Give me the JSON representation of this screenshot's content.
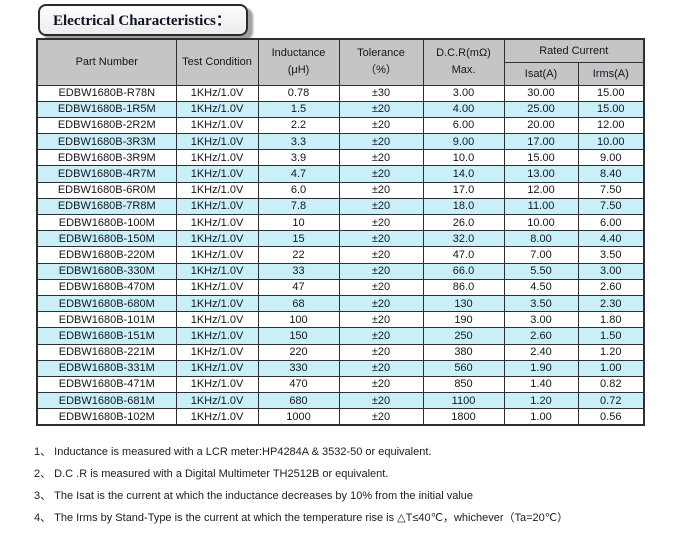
{
  "title": "Electrical Characteristics：",
  "colors": {
    "header_bg": "#c5c5c5",
    "alt_row_bg": "#c9f0f8",
    "border": "#2f2f2f",
    "text": "#15151f"
  },
  "table": {
    "headers": {
      "part_number": "Part Number",
      "test_condition": "Test Condition",
      "inductance": [
        "Inductance",
        "(μH)"
      ],
      "tolerance": [
        "Tolerance",
        "（%）"
      ],
      "dcr": [
        "D.C.R(mΩ)",
        "Max."
      ],
      "rated_current": "Rated Current",
      "isat": "Isat(A)",
      "irms": "Irms(A)"
    },
    "rows": [
      [
        "EDBW1680B-R78N",
        "1KHz/1.0V",
        "0.78",
        "±30",
        "3.00",
        "30.00",
        "15.00"
      ],
      [
        "EDBW1680B-1R5M",
        "1KHz/1.0V",
        "1.5",
        "±20",
        "4.00",
        "25.00",
        "15.00"
      ],
      [
        "EDBW1680B-2R2M",
        "1KHz/1.0V",
        "2.2",
        "±20",
        "6.00",
        "20.00",
        "12.00"
      ],
      [
        "EDBW1680B-3R3M",
        "1KHz/1.0V",
        "3.3",
        "±20",
        "9.00",
        "17.00",
        "10.00"
      ],
      [
        "EDBW1680B-3R9M",
        "1KHz/1.0V",
        "3.9",
        "±20",
        "10.0",
        "15.00",
        "9.00"
      ],
      [
        "EDBW1680B-4R7M",
        "1KHz/1.0V",
        "4.7",
        "±20",
        "14.0",
        "13.00",
        "8.40"
      ],
      [
        "EDBW1680B-6R0M",
        "1KHz/1.0V",
        "6.0",
        "±20",
        "17.0",
        "12.00",
        "7.50"
      ],
      [
        "EDBW1680B-7R8M",
        "1KHz/1.0V",
        "7.8",
        "±20",
        "18.0",
        "11.00",
        "7.50"
      ],
      [
        "EDBW1680B-100M",
        "1KHz/1.0V",
        "10",
        "±20",
        "26.0",
        "10.00",
        "6.00"
      ],
      [
        "EDBW1680B-150M",
        "1KHz/1.0V",
        "15",
        "±20",
        "32.0",
        "8.00",
        "4.40"
      ],
      [
        "EDBW1680B-220M",
        "1KHz/1.0V",
        "22",
        "±20",
        "47.0",
        "7.00",
        "3.50"
      ],
      [
        "EDBW1680B-330M",
        "1KHz/1.0V",
        "33",
        "±20",
        "66.0",
        "5.50",
        "3.00"
      ],
      [
        "EDBW1680B-470M",
        "1KHz/1.0V",
        "47",
        "±20",
        "86.0",
        "4.50",
        "2.60"
      ],
      [
        "EDBW1680B-680M",
        "1KHz/1.0V",
        "68",
        "±20",
        "130",
        "3.50",
        "2.30"
      ],
      [
        "EDBW1680B-101M",
        "1KHz/1.0V",
        "100",
        "±20",
        "190",
        "3.00",
        "1.80"
      ],
      [
        "EDBW1680B-151M",
        "1KHz/1.0V",
        "150",
        "±20",
        "250",
        "2.60",
        "1.50"
      ],
      [
        "EDBW1680B-221M",
        "1KHz/1.0V",
        "220",
        "±20",
        "380",
        "2.40",
        "1.20"
      ],
      [
        "EDBW1680B-331M",
        "1KHz/1.0V",
        "330",
        "±20",
        "560",
        "1.90",
        "1.00"
      ],
      [
        "EDBW1680B-471M",
        "1KHz/1.0V",
        "470",
        "±20",
        "850",
        "1.40",
        "0.82"
      ],
      [
        "EDBW1680B-681M",
        "1KHz/1.0V",
        "680",
        "±20",
        "1100",
        "1.20",
        "0.72"
      ],
      [
        "EDBW1680B-102M",
        "1KHz/1.0V",
        "1000",
        "±20",
        "1800",
        "1.00",
        "0.56"
      ]
    ]
  },
  "notes": [
    "1、 Inductance is measured with a LCR meter:HP4284A & 3532-50 or equivalent.",
    "2、 D.C .R is measured with a Digital Multimeter TH2512B or equivalent.",
    "3、 The Isat is the current at which the inductance decreases by 10% from the initial value",
    "4、 The Irms by Stand-Type is the current at which the temperature rise is △T≤40℃，whichever（Ta=20℃）"
  ]
}
